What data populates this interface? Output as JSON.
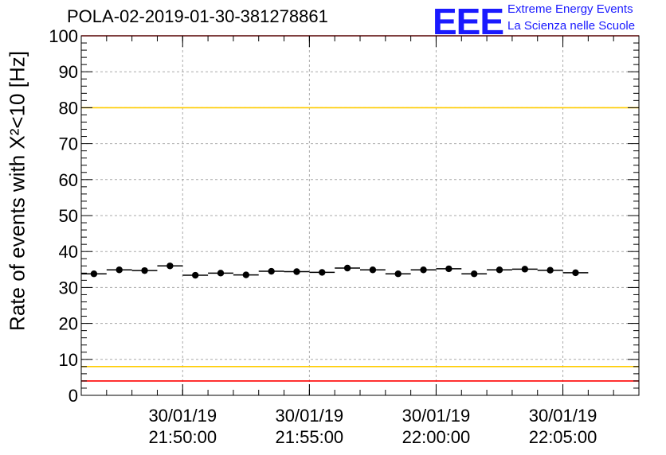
{
  "header": {
    "title": "POLA-02-2019-01-30-381278861",
    "logo_text": "EEE",
    "logo_line1": "Extreme Energy Events",
    "logo_line2": "La Scienza nelle Scuole"
  },
  "colors": {
    "points": "#000000",
    "red_line": "#ff0000",
    "yellow_line": "#ffcc00",
    "grid": "#aaaaaa",
    "logo": "#1a1aff"
  },
  "chart_data": {
    "type": "scatter",
    "title": "POLA-02-2019-01-30-381278861",
    "ylabel": "Rate of events with X²<10 [Hz]",
    "xlabel": "",
    "ylim": [
      0,
      100
    ],
    "yticks": [
      0,
      10,
      20,
      30,
      40,
      50,
      60,
      70,
      80,
      90,
      100
    ],
    "xlim": [
      "21:46:00",
      "22:08:00"
    ],
    "xticks": [
      {
        "time": "21:50:00",
        "date": "30/01/19",
        "clock": "21:50:00"
      },
      {
        "time": "21:55:00",
        "date": "30/01/19",
        "clock": "21:55:00"
      },
      {
        "time": "22:00:00",
        "date": "30/01/19",
        "clock": "22:00:00"
      },
      {
        "time": "22:05:00",
        "date": "30/01/19",
        "clock": "22:05:00"
      }
    ],
    "grid": true,
    "bin_width_seconds": 60,
    "series": [
      {
        "points": [
          {
            "x": "21:46:30",
            "y": 33.8
          },
          {
            "x": "21:47:30",
            "y": 34.9
          },
          {
            "x": "21:48:30",
            "y": 34.7
          },
          {
            "x": "21:49:30",
            "y": 36.0
          },
          {
            "x": "21:50:30",
            "y": 33.4
          },
          {
            "x": "21:51:30",
            "y": 34.0
          },
          {
            "x": "21:52:30",
            "y": 33.5
          },
          {
            "x": "21:53:30",
            "y": 34.5
          },
          {
            "x": "21:54:30",
            "y": 34.4
          },
          {
            "x": "21:55:30",
            "y": 34.2
          },
          {
            "x": "21:56:30",
            "y": 35.4
          },
          {
            "x": "21:57:30",
            "y": 34.9
          },
          {
            "x": "21:58:30",
            "y": 33.8
          },
          {
            "x": "21:59:30",
            "y": 34.9
          },
          {
            "x": "22:00:30",
            "y": 35.2
          },
          {
            "x": "22:01:30",
            "y": 33.8
          },
          {
            "x": "22:02:30",
            "y": 34.9
          },
          {
            "x": "22:03:30",
            "y": 35.1
          },
          {
            "x": "22:04:30",
            "y": 34.8
          },
          {
            "x": "22:05:30",
            "y": 34.1
          }
        ]
      }
    ],
    "reference_lines": [
      {
        "y": 100,
        "color": "#ff0000"
      },
      {
        "y": 80,
        "color": "#ffcc00"
      },
      {
        "y": 8,
        "color": "#ffcc00"
      },
      {
        "y": 4,
        "color": "#ff0000"
      }
    ]
  }
}
